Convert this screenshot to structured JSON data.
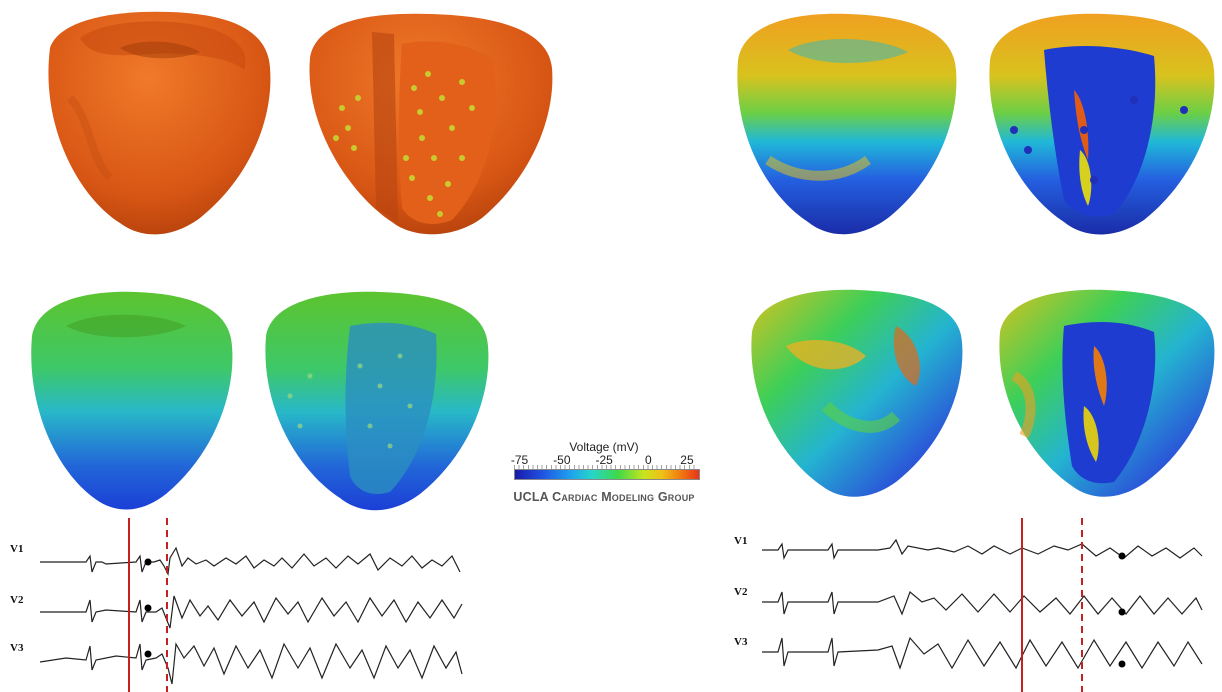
{
  "colorbar": {
    "title": "Voltage (mV)",
    "ticks": [
      "-75",
      "-50",
      "-25",
      "0",
      "25"
    ],
    "range": [
      -85,
      30
    ]
  },
  "credit": "UCLA Cardiac Modeling Group",
  "ecg_left": {
    "leads": [
      "V1",
      "V2",
      "V3"
    ]
  },
  "ecg_right": {
    "leads": [
      "V1",
      "V2",
      "V3"
    ]
  },
  "colors": {
    "depolarized": "#e2571c",
    "resting_green": "#5cc42e",
    "resting_blue": "#1b3fd6",
    "marker_line": "#c62020"
  }
}
